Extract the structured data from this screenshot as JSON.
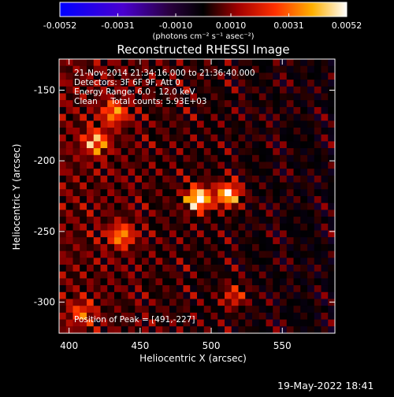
{
  "title": "Reconstructed RHESSI Image",
  "footer_timestamp": "19-May-2022 18:41",
  "colorbar": {
    "tick_labels": [
      "-0.0052",
      "-0.0031",
      "-0.0010",
      "0.0010",
      "0.0031",
      "0.0052"
    ],
    "unit_label": "(photons cm⁻² s⁻¹ asec⁻²)",
    "range": [
      -0.0052,
      0.0052
    ]
  },
  "info": {
    "line1": "21-Nov-2014 21:34:16.000 to 21:36:40.000",
    "line2": "Detectors: 3F 6F 9F, Att 0",
    "line3": "Energy Range: 6.0 - 12.0 keV",
    "line4": "Clean     Total counts: 5.93E+03",
    "peak": "Position of Peak = [491,-227]"
  },
  "chart_data": {
    "type": "heatmap",
    "title": "Reconstructed RHESSI Image",
    "xlabel": "Heliocentric X (arcsec)",
    "ylabel": "Heliocentric Y (arcsec)",
    "xlim": [
      393,
      587
    ],
    "ylim": [
      -322,
      -128
    ],
    "x_ticks": [
      400,
      450,
      500,
      550
    ],
    "x_tick_labels": [
      "400",
      "450",
      "500",
      "550"
    ],
    "y_ticks": [
      -150,
      -200,
      -250,
      -300
    ],
    "y_tick_labels": [
      "-150",
      "-200",
      "-250",
      "-300"
    ],
    "colormap": "blue-purple-red-yellow-white",
    "peak_position": [
      491,
      -227
    ],
    "bright_sources": [
      {
        "x": 491,
        "y": -227,
        "value": 0.0052
      },
      {
        "x": 512,
        "y": -224,
        "value": 0.0045
      },
      {
        "x": 419,
        "y": -187,
        "value": 0.0034
      },
      {
        "x": 432,
        "y": -166,
        "value": 0.003
      },
      {
        "x": 437,
        "y": -253,
        "value": 0.0031
      },
      {
        "x": 409,
        "y": -308,
        "value": 0.0022
      },
      {
        "x": 516,
        "y": -296,
        "value": 0.0022
      }
    ]
  }
}
